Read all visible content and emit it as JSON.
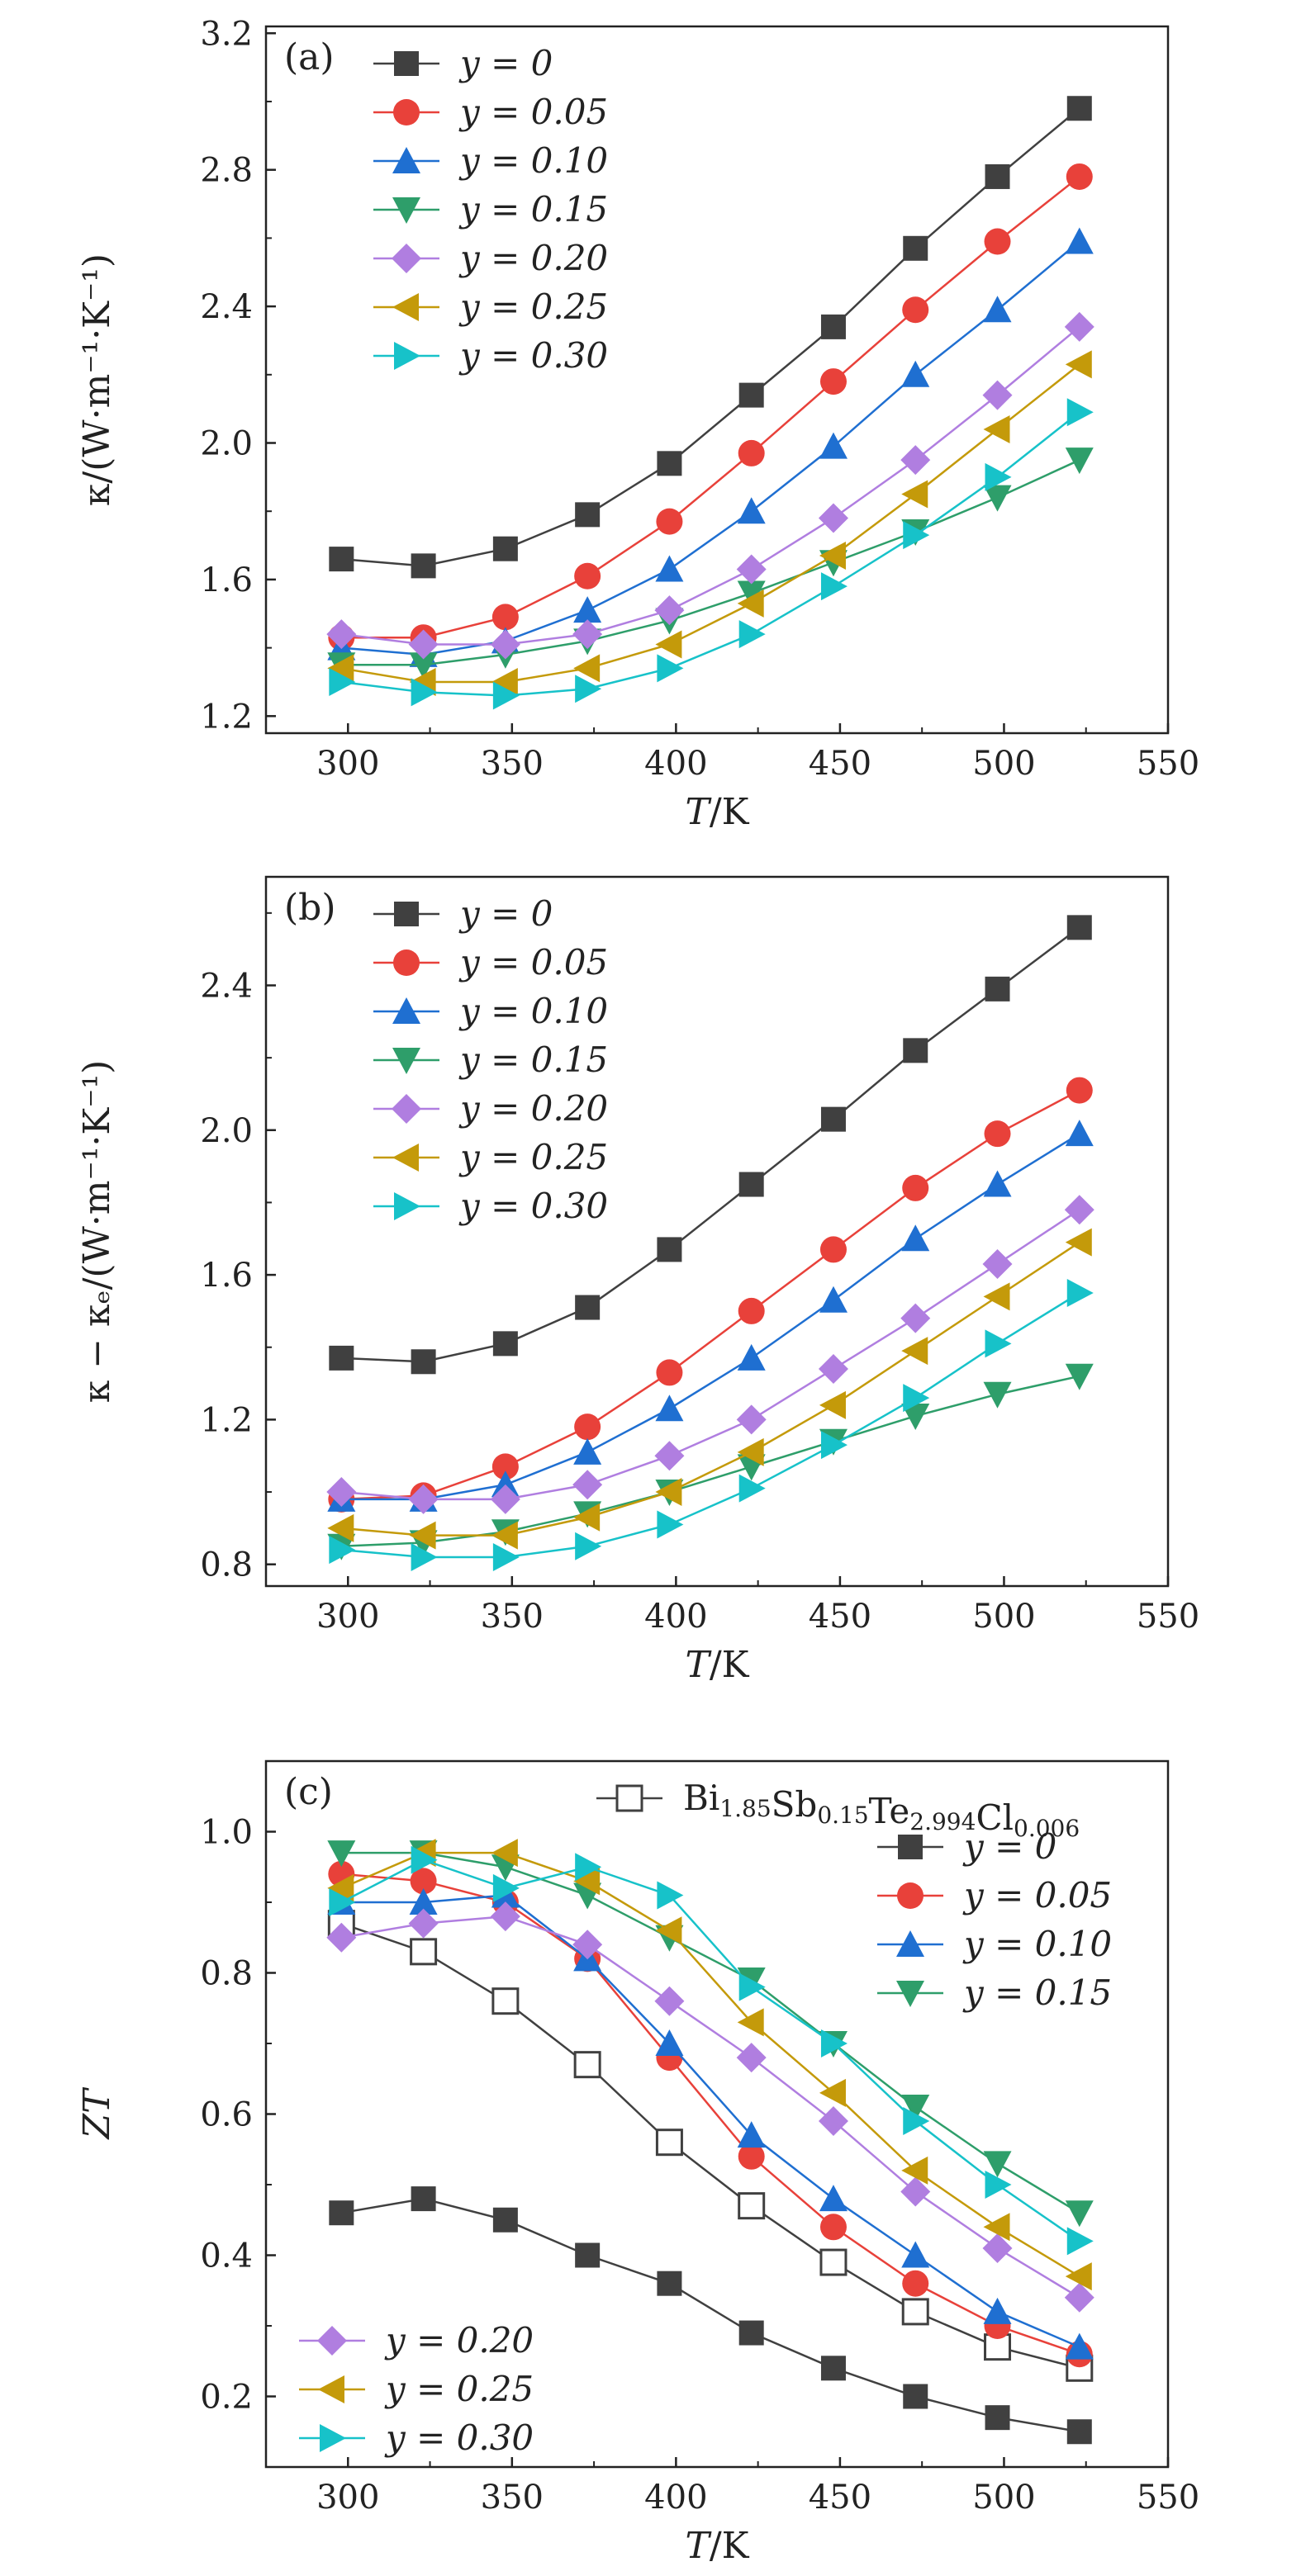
{
  "chart_data": [
    {
      "type": "line",
      "panel_label": "(a)",
      "xlabel": "T/K",
      "ylabel": "κ/(W·m⁻¹·K⁻¹)",
      "xlim": [
        275,
        550
      ],
      "ylim": [
        1.15,
        3.22
      ],
      "xticks": [
        300,
        350,
        400,
        450,
        500,
        550
      ],
      "yticks": [
        1.2,
        1.6,
        2.0,
        2.4,
        2.8,
        3.2
      ],
      "ytick_labels": [
        "1.2",
        "1.6",
        "2.0",
        "2.4",
        "2.8",
        "3.2"
      ],
      "legend_position": "top-left",
      "x": [
        298,
        323,
        348,
        373,
        398,
        423,
        448,
        473,
        498,
        523
      ],
      "series": [
        {
          "name": "y = 0",
          "marker": "square",
          "color": "#404040",
          "values": [
            1.66,
            1.64,
            1.69,
            1.79,
            1.94,
            2.14,
            2.34,
            2.57,
            2.78,
            2.98
          ]
        },
        {
          "name": "y = 0.05",
          "marker": "circle",
          "color": "#e8413a",
          "values": [
            1.43,
            1.43,
            1.49,
            1.61,
            1.77,
            1.97,
            2.18,
            2.39,
            2.59,
            2.78
          ]
        },
        {
          "name": "y = 0.10",
          "marker": "triangle-up",
          "color": "#1f6fd1",
          "values": [
            1.4,
            1.38,
            1.42,
            1.51,
            1.63,
            1.8,
            1.99,
            2.2,
            2.39,
            2.59
          ]
        },
        {
          "name": "y = 0.15",
          "marker": "triangle-down",
          "color": "#2e9e6a",
          "values": [
            1.35,
            1.35,
            1.38,
            1.42,
            1.48,
            1.56,
            1.65,
            1.74,
            1.84,
            1.95
          ]
        },
        {
          "name": "y = 0.20",
          "marker": "diamond",
          "color": "#b07ee0",
          "values": [
            1.44,
            1.41,
            1.41,
            1.44,
            1.51,
            1.63,
            1.78,
            1.95,
            2.14,
            2.34
          ]
        },
        {
          "name": "y = 0.25",
          "marker": "triangle-left",
          "color": "#c49a0a",
          "values": [
            1.34,
            1.3,
            1.3,
            1.34,
            1.41,
            1.53,
            1.67,
            1.85,
            2.04,
            2.23
          ]
        },
        {
          "name": "y = 0.30",
          "marker": "triangle-right",
          "color": "#17c2c9",
          "values": [
            1.3,
            1.27,
            1.26,
            1.28,
            1.34,
            1.44,
            1.58,
            1.73,
            1.9,
            2.09
          ]
        }
      ]
    },
    {
      "type": "line",
      "panel_label": "(b)",
      "xlabel": "T/K",
      "ylabel": "κ − κₑ/(W·m⁻¹·K⁻¹)",
      "xlim": [
        275,
        550
      ],
      "ylim": [
        0.74,
        2.7
      ],
      "xticks": [
        300,
        350,
        400,
        450,
        500,
        550
      ],
      "yticks": [
        0.8,
        1.2,
        1.6,
        2.0,
        2.4
      ],
      "ytick_labels": [
        "0.8",
        "1.2",
        "1.6",
        "2.0",
        "2.4"
      ],
      "legend_position": "top-left",
      "x": [
        298,
        323,
        348,
        373,
        398,
        423,
        448,
        473,
        498,
        523
      ],
      "series": [
        {
          "name": "y = 0",
          "marker": "square",
          "color": "#404040",
          "values": [
            1.37,
            1.36,
            1.41,
            1.51,
            1.67,
            1.85,
            2.03,
            2.22,
            2.39,
            2.56
          ]
        },
        {
          "name": "y = 0.05",
          "marker": "circle",
          "color": "#e8413a",
          "values": [
            0.98,
            0.99,
            1.07,
            1.18,
            1.33,
            1.5,
            1.67,
            1.84,
            1.99,
            2.11
          ]
        },
        {
          "name": "y = 0.10",
          "marker": "triangle-up",
          "color": "#1f6fd1",
          "values": [
            0.98,
            0.98,
            1.02,
            1.11,
            1.23,
            1.37,
            1.53,
            1.7,
            1.85,
            1.99
          ]
        },
        {
          "name": "y = 0.15",
          "marker": "triangle-down",
          "color": "#2e9e6a",
          "values": [
            0.85,
            0.86,
            0.89,
            0.94,
            1.0,
            1.07,
            1.14,
            1.21,
            1.27,
            1.32
          ]
        },
        {
          "name": "y = 0.20",
          "marker": "diamond",
          "color": "#b07ee0",
          "values": [
            1.0,
            0.98,
            0.98,
            1.02,
            1.1,
            1.2,
            1.34,
            1.48,
            1.63,
            1.78
          ]
        },
        {
          "name": "y = 0.25",
          "marker": "triangle-left",
          "color": "#c49a0a",
          "values": [
            0.9,
            0.88,
            0.88,
            0.93,
            1.0,
            1.11,
            1.24,
            1.39,
            1.54,
            1.69
          ]
        },
        {
          "name": "y = 0.30",
          "marker": "triangle-right",
          "color": "#17c2c9",
          "values": [
            0.84,
            0.82,
            0.82,
            0.85,
            0.91,
            1.01,
            1.13,
            1.26,
            1.41,
            1.55
          ]
        }
      ]
    },
    {
      "type": "line",
      "panel_label": "(c)",
      "xlabel": "T/K",
      "ylabel": "ZT",
      "xlim": [
        275,
        550
      ],
      "ylim": [
        0.1,
        1.1
      ],
      "xticks": [
        300,
        350,
        400,
        450,
        500,
        550
      ],
      "yticks": [
        0.2,
        0.4,
        0.6,
        0.8,
        1.0
      ],
      "ytick_labels": [
        "0.2",
        "0.4",
        "0.6",
        "0.8",
        "1.0"
      ],
      "legend_position": "top-right and bottom-left",
      "reference_label": {
        "base": "Bi",
        "parts": [
          [
            "Bi",
            "1.85"
          ],
          [
            "Sb",
            "0.15"
          ],
          [
            "Te",
            "2.994"
          ],
          [
            "Cl",
            "0.006"
          ]
        ],
        "text": "Bi1.85Sb0.15Te2.994Cl0.006"
      },
      "x": [
        298,
        323,
        348,
        373,
        398,
        423,
        448,
        473,
        498,
        523
      ],
      "series": [
        {
          "name": "Bi1.85Sb0.15Te2.994Cl0.006",
          "marker": "open-square",
          "color": "#404040",
          "values": [
            0.87,
            0.83,
            0.76,
            0.67,
            0.56,
            0.47,
            0.39,
            0.32,
            0.27,
            0.24
          ]
        },
        {
          "name": "y = 0",
          "marker": "square",
          "color": "#404040",
          "values": [
            0.46,
            0.48,
            0.45,
            0.4,
            0.36,
            0.29,
            0.24,
            0.2,
            0.17,
            0.15
          ]
        },
        {
          "name": "y = 0.05",
          "marker": "circle",
          "color": "#e8413a",
          "values": [
            0.94,
            0.93,
            0.9,
            0.82,
            0.68,
            0.54,
            0.44,
            0.36,
            0.3,
            0.26
          ]
        },
        {
          "name": "y = 0.10",
          "marker": "triangle-up",
          "color": "#1f6fd1",
          "values": [
            0.9,
            0.9,
            0.91,
            0.82,
            0.7,
            0.57,
            0.48,
            0.4,
            0.32,
            0.27
          ]
        },
        {
          "name": "y = 0.15",
          "marker": "triangle-down",
          "color": "#2e9e6a",
          "values": [
            0.97,
            0.97,
            0.95,
            0.91,
            0.85,
            0.79,
            0.7,
            0.61,
            0.53,
            0.46
          ]
        },
        {
          "name": "y = 0.20",
          "marker": "diamond",
          "color": "#b07ee0",
          "values": [
            0.85,
            0.87,
            0.88,
            0.84,
            0.76,
            0.68,
            0.59,
            0.49,
            0.41,
            0.34
          ]
        },
        {
          "name": "y = 0.25",
          "marker": "triangle-left",
          "color": "#c49a0a",
          "values": [
            0.92,
            0.97,
            0.97,
            0.93,
            0.86,
            0.73,
            0.63,
            0.52,
            0.44,
            0.37
          ]
        },
        {
          "name": "y = 0.30",
          "marker": "triangle-right",
          "color": "#17c2c9",
          "values": [
            0.9,
            0.96,
            0.92,
            0.95,
            0.91,
            0.78,
            0.7,
            0.59,
            0.5,
            0.42
          ]
        }
      ],
      "legend_groups": [
        {
          "position": "top-right",
          "series_names": [
            "Bi1.85Sb0.15Te2.994Cl0.006",
            "y = 0",
            "y = 0.05",
            "y = 0.10",
            "y = 0.15"
          ]
        },
        {
          "position": "bottom-left",
          "series_names": [
            "y = 0.20",
            "y = 0.25",
            "y = 0.30"
          ]
        }
      ]
    }
  ]
}
